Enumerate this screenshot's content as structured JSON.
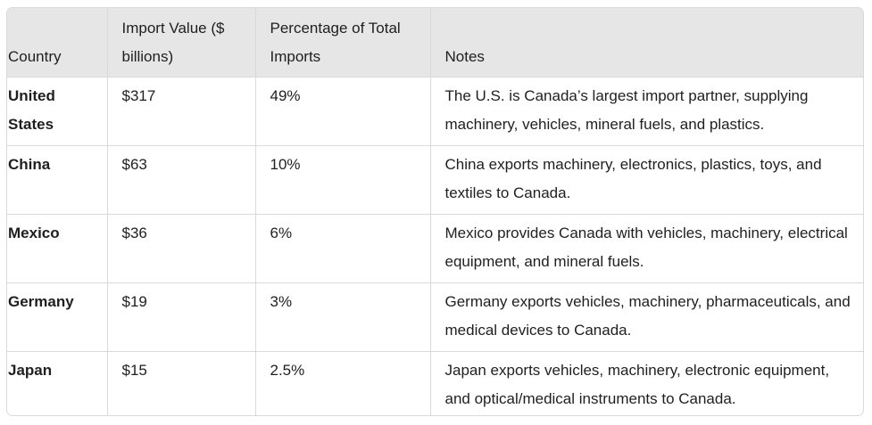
{
  "table": {
    "headers": [
      "Country",
      "Import Value ($ billions)",
      "Percentage of Total Imports",
      "Notes"
    ],
    "rows": [
      {
        "country": "United States",
        "value": "$317",
        "percent": "49%",
        "notes": "The U.S. is Canada’s largest import partner, supplying machinery, vehicles, mineral fuels, and plastics."
      },
      {
        "country": "China",
        "value": "$63",
        "percent": "10%",
        "notes": "China exports machinery, electronics, plastics, toys, and textiles to Canada."
      },
      {
        "country": "Mexico",
        "value": "$36",
        "percent": "6%",
        "notes": "Mexico provides Canada with vehicles, machinery, electrical equipment, and mineral fuels."
      },
      {
        "country": "Germany",
        "value": "$19",
        "percent": "3%",
        "notes": "Germany exports vehicles, machinery, pharmaceuticals, and medical devices to Canada."
      },
      {
        "country": "Japan",
        "value": "$15",
        "percent": "2.5%",
        "notes": "Japan exports vehicles, machinery, electronic equipment, and optical/medical instruments to Canada."
      }
    ]
  }
}
